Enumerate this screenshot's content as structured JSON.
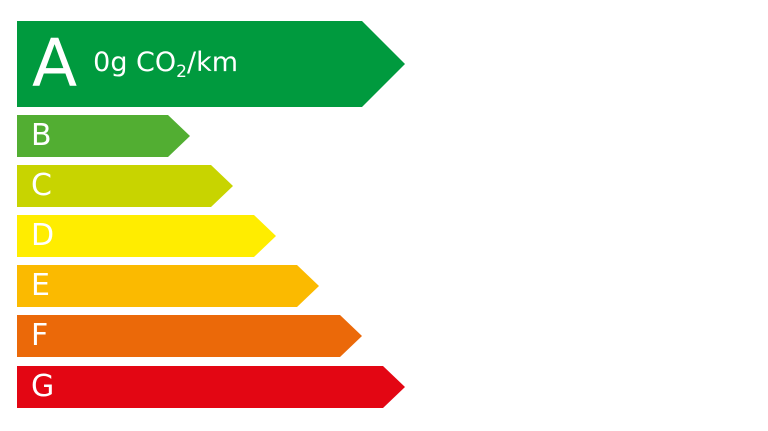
{
  "label": {
    "rating": {
      "value": "0g CO",
      "subscript": "2",
      "unit": "/km"
    },
    "classes": [
      {
        "letter": "A",
        "color": "#009a3e"
      },
      {
        "letter": "B",
        "color": "#52ae32"
      },
      {
        "letter": "C",
        "color": "#c8d400"
      },
      {
        "letter": "D",
        "color": "#ffed00"
      },
      {
        "letter": "E",
        "color": "#fbba00"
      },
      {
        "letter": "F",
        "color": "#eb6909"
      },
      {
        "letter": "G",
        "color": "#e30613"
      }
    ],
    "active_class": "A"
  }
}
